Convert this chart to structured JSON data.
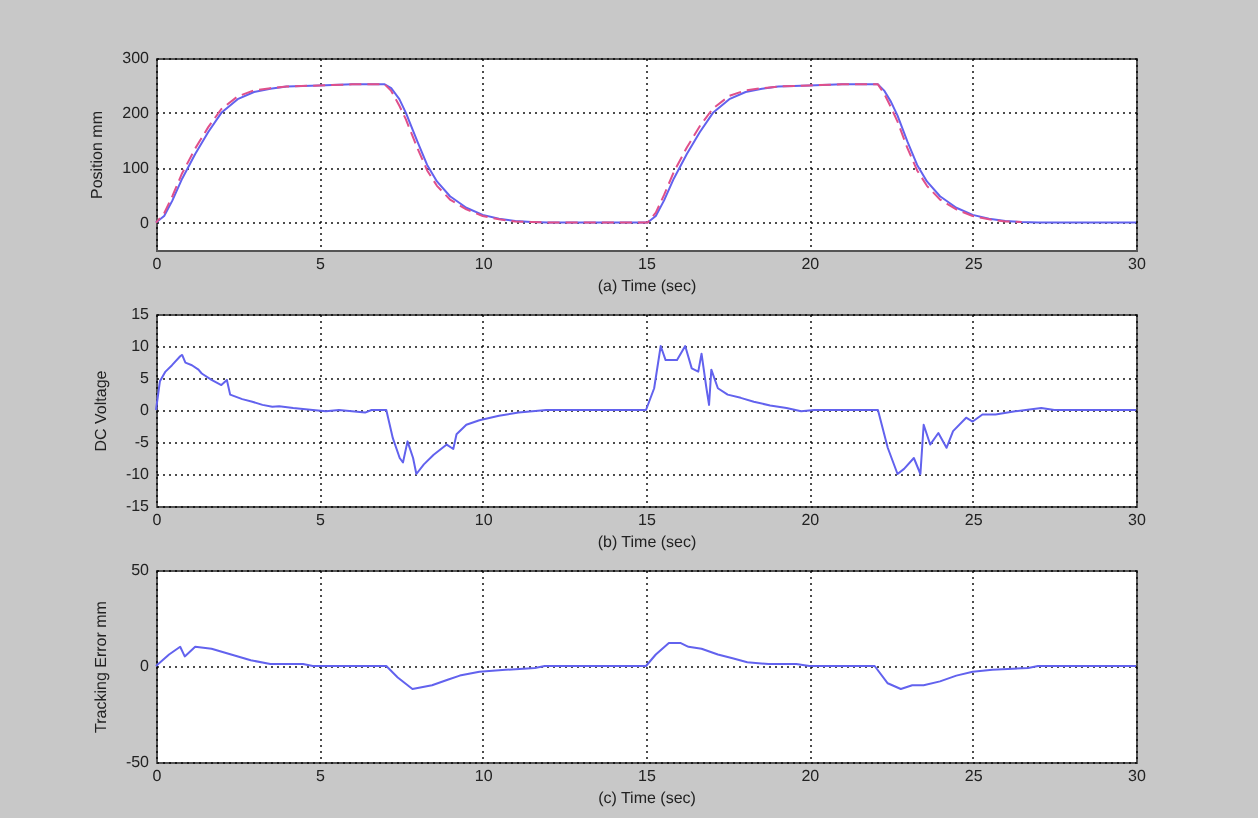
{
  "chart_data": [
    {
      "type": "line",
      "xlabel": "(a) Time (sec)",
      "ylabel": "Position mm",
      "xlim": [
        0,
        30
      ],
      "xticks": [
        0,
        5,
        10,
        15,
        20,
        25,
        30
      ],
      "ylim": [
        -50,
        300
      ],
      "yticks": [
        0,
        100,
        200,
        300
      ],
      "grid": true,
      "x": [
        0,
        0.25,
        0.5,
        0.8,
        1.2,
        1.6,
        2.0,
        2.5,
        3,
        3.5,
        4,
        5,
        6,
        7,
        7.2,
        7.45,
        7.65,
        8.0,
        8.3,
        8.6,
        9.0,
        9.5,
        10,
        10.5,
        11,
        11.5,
        12,
        15.05,
        15.3,
        15.55,
        15.85,
        16.25,
        16.65,
        17.05,
        17.55,
        18.05,
        18.55,
        19.05,
        20,
        21,
        22.1,
        22.3,
        22.5,
        22.7,
        23.0,
        23.3,
        23.6,
        24.0,
        24.5,
        25,
        25.5,
        26,
        26.5,
        27,
        30
      ],
      "series": [
        {
          "color": "#6262ee",
          "line_style": "solid",
          "values": [
            0,
            12,
            40,
            80,
            125,
            165,
            200,
            225,
            238,
            244,
            248,
            250,
            252,
            252,
            245,
            225,
            200,
            148,
            105,
            75,
            48,
            27,
            14,
            7,
            3,
            1,
            0,
            0,
            12,
            40,
            80,
            125,
            165,
            200,
            225,
            238,
            244,
            248,
            250,
            252,
            252,
            240,
            220,
            195,
            148,
            105,
            75,
            48,
            27,
            14,
            7,
            3,
            1,
            0,
            0
          ]
        },
        {
          "color": "#e0508a",
          "line_style": "dashed",
          "values": [
            0,
            17,
            48,
            90,
            135,
            174,
            207,
            230,
            241,
            245,
            248,
            250,
            252,
            252,
            240,
            213,
            188,
            136,
            95,
            67,
            42,
            24,
            12,
            6,
            2,
            1,
            0,
            0,
            18,
            50,
            92,
            137,
            176,
            208,
            231,
            241,
            245,
            248,
            250,
            252,
            252,
            234,
            210,
            184,
            136,
            95,
            67,
            42,
            24,
            12,
            6,
            2,
            1,
            null,
            null
          ]
        }
      ]
    },
    {
      "type": "line",
      "xlabel": "(b) Time (sec)",
      "ylabel": "DC Voltage",
      "xlim": [
        0,
        30
      ],
      "xticks": [
        0,
        5,
        10,
        15,
        20,
        25,
        30
      ],
      "ylim": [
        -15,
        15
      ],
      "yticks": [
        -15,
        -10,
        -5,
        0,
        5,
        10,
        15
      ],
      "grid": true,
      "series": [
        {
          "color": "#6262ee",
          "line_style": "solid",
          "x": [
            0,
            0.12,
            0.29,
            0.49,
            0.74,
            0.8,
            0.9,
            1.1,
            1.3,
            1.4,
            1.7,
            2.0,
            2.17,
            2.27,
            2.64,
            2.95,
            3.26,
            3.56,
            3.77,
            4.2,
            4.8,
            5.2,
            5.6,
            6.4,
            6.6,
            7.05,
            7.25,
            7.46,
            7.56,
            7.7,
            7.87,
            7.97,
            8.2,
            8.5,
            8.9,
            9.1,
            9.2,
            9.5,
            9.9,
            10.5,
            11.1,
            11.95,
            12.3,
            15.0,
            15.25,
            15.45,
            15.6,
            15.95,
            16.2,
            16.4,
            16.6,
            16.7,
            16.85,
            16.93,
            17.0,
            17.2,
            17.5,
            17.9,
            18.3,
            18.8,
            19.3,
            19.75,
            20.15,
            22.1,
            22.4,
            22.7,
            22.9,
            23.2,
            23.4,
            23.5,
            23.7,
            23.95,
            24.2,
            24.4,
            24.8,
            25.0,
            25.3,
            25.7,
            26.3,
            27.1,
            27.5,
            30
          ],
          "values": [
            0,
            4.5,
            6,
            7,
            8.4,
            8.6,
            7.4,
            7,
            6.3,
            5.7,
            4.7,
            3.9,
            4.7,
            2.4,
            1.7,
            1.3,
            0.8,
            0.5,
            0.6,
            0.3,
            0,
            -0.2,
            0,
            -0.4,
            0,
            0,
            -4.4,
            -7.5,
            -8.2,
            -4.9,
            -7.5,
            -10,
            -8.5,
            -7,
            -5.4,
            -6.1,
            -3.8,
            -2.3,
            -1.6,
            -0.9,
            -0.4,
            0,
            0,
            0,
            3.4,
            10,
            7.8,
            7.8,
            10,
            6.5,
            6,
            8.8,
            3.4,
            0.8,
            6.3,
            3.4,
            2.4,
            1.9,
            1.3,
            0.7,
            0.3,
            -0.2,
            0,
            0,
            -5.9,
            -10,
            -9.2,
            -7.5,
            -10,
            -2.3,
            -5.4,
            -3.6,
            -5.9,
            -3.3,
            -1.2,
            -1.8,
            -0.7,
            -0.7,
            -0.2,
            0.3,
            0,
            0
          ]
        }
      ]
    },
    {
      "type": "line",
      "xlabel": "(c) Time (sec)",
      "ylabel": "Tracking Error mm",
      "xlim": [
        0,
        30
      ],
      "xticks": [
        0,
        5,
        10,
        15,
        20,
        25,
        30
      ],
      "ylim": [
        -50,
        50
      ],
      "yticks": [
        -50,
        0,
        50
      ],
      "grid": true,
      "series": [
        {
          "color": "#6262ee",
          "line_style": "solid",
          "x": [
            0,
            0.4,
            0.74,
            0.88,
            1.2,
            1.7,
            2.3,
            2.9,
            3.5,
            4.5,
            4.8,
            7.05,
            7.4,
            7.85,
            8.45,
            8.95,
            9.3,
            9.9,
            10.7,
            11.6,
            11.9,
            15.0,
            15.3,
            15.7,
            16.05,
            16.3,
            16.7,
            17.2,
            17.65,
            18.1,
            18.75,
            19.6,
            20.0,
            22.0,
            22.4,
            22.8,
            23.15,
            23.5,
            24.0,
            24.5,
            25.0,
            25.6,
            26.7,
            27.0,
            30
          ],
          "values": [
            0,
            6,
            10,
            5,
            10,
            9,
            6,
            3,
            1,
            1,
            0,
            0,
            -6,
            -12,
            -10,
            -7,
            -5,
            -3,
            -2,
            -1,
            0,
            0,
            6,
            12,
            12,
            10,
            9,
            6,
            4,
            2,
            1,
            1,
            0,
            0,
            -9,
            -12,
            -10,
            -10,
            -8,
            -5,
            -3,
            -2,
            -1,
            0,
            0
          ]
        }
      ]
    }
  ]
}
